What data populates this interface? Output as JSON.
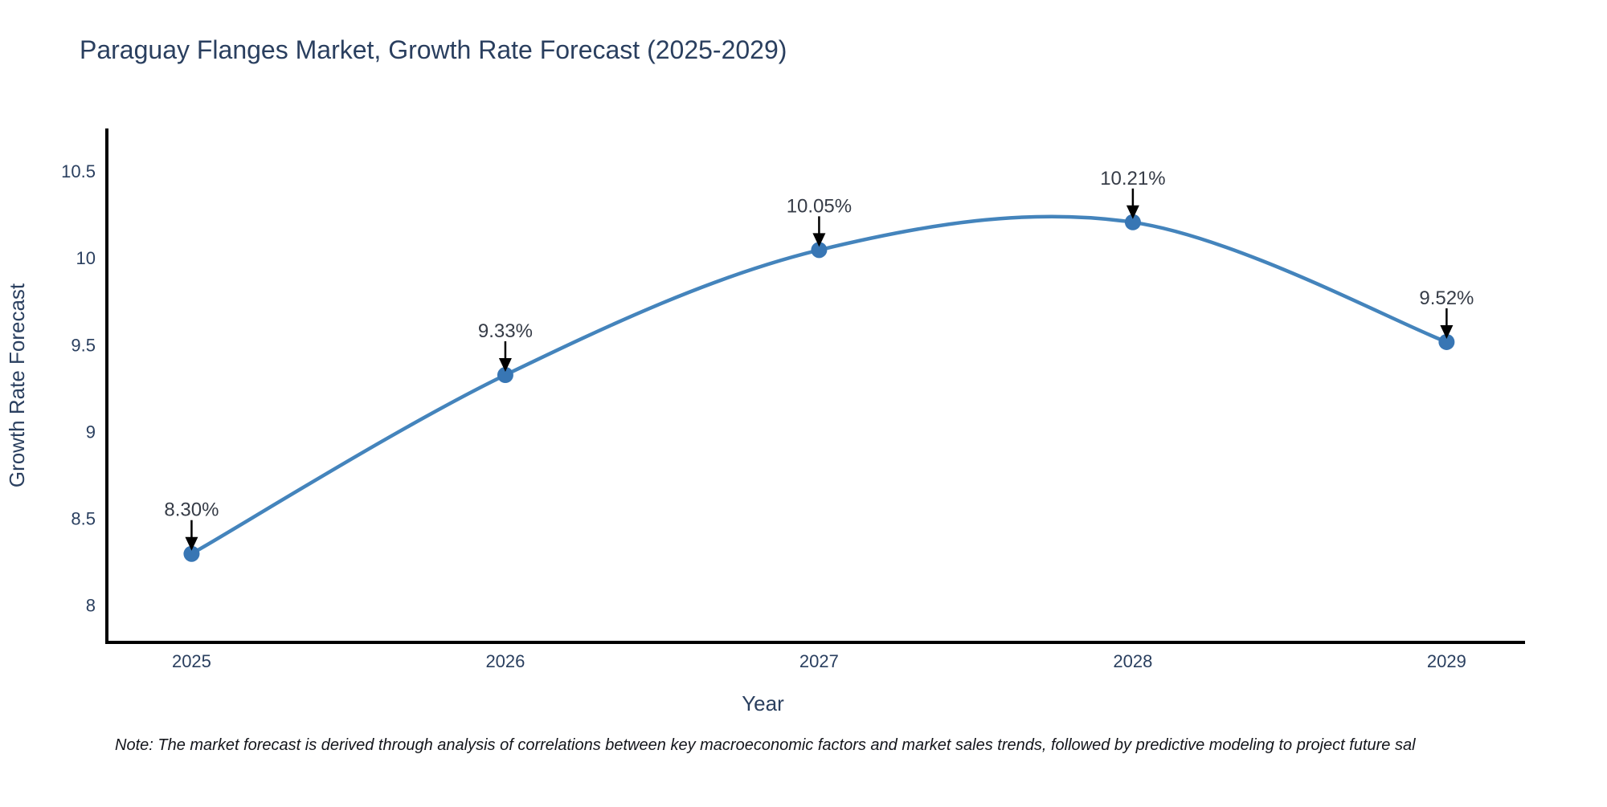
{
  "title": "Paraguay Flanges Market, Growth Rate Forecast (2025-2029)",
  "note": "Note: The market forecast is derived through analysis of correlations between key macroeconomic factors and market sales trends, followed by predictive modeling to project future sal",
  "chart_data": {
    "type": "line",
    "title": "Paraguay Flanges Market, Growth Rate Forecast (2025-2029)",
    "x": [
      2025,
      2026,
      2027,
      2028,
      2029
    ],
    "categories": [
      "2025",
      "2026",
      "2027",
      "2028",
      "2029"
    ],
    "values": [
      8.3,
      9.33,
      10.05,
      10.21,
      9.52
    ],
    "point_labels": [
      "8.30%",
      "9.33%",
      "10.05%",
      "10.21%",
      "9.52%"
    ],
    "xlabel": "Year",
    "ylabel": "Growth Rate Forecast",
    "yticks": [
      8,
      8.5,
      9,
      9.5,
      10,
      10.5
    ],
    "ytick_labels": [
      "8",
      "8.5",
      "9",
      "9.5",
      "10",
      "10.5"
    ],
    "xlim": [
      2024.73,
      2029.25
    ],
    "ylim": [
      7.79,
      10.75
    ],
    "grid": false,
    "legend": "none",
    "colors": {
      "line": "#4484bc",
      "marker": "#3876b4",
      "spine": "#000000",
      "axis_text": "#2a3f5f",
      "annotation_text": "#363c47",
      "arrow": "#000000",
      "background": "#ffffff"
    }
  }
}
